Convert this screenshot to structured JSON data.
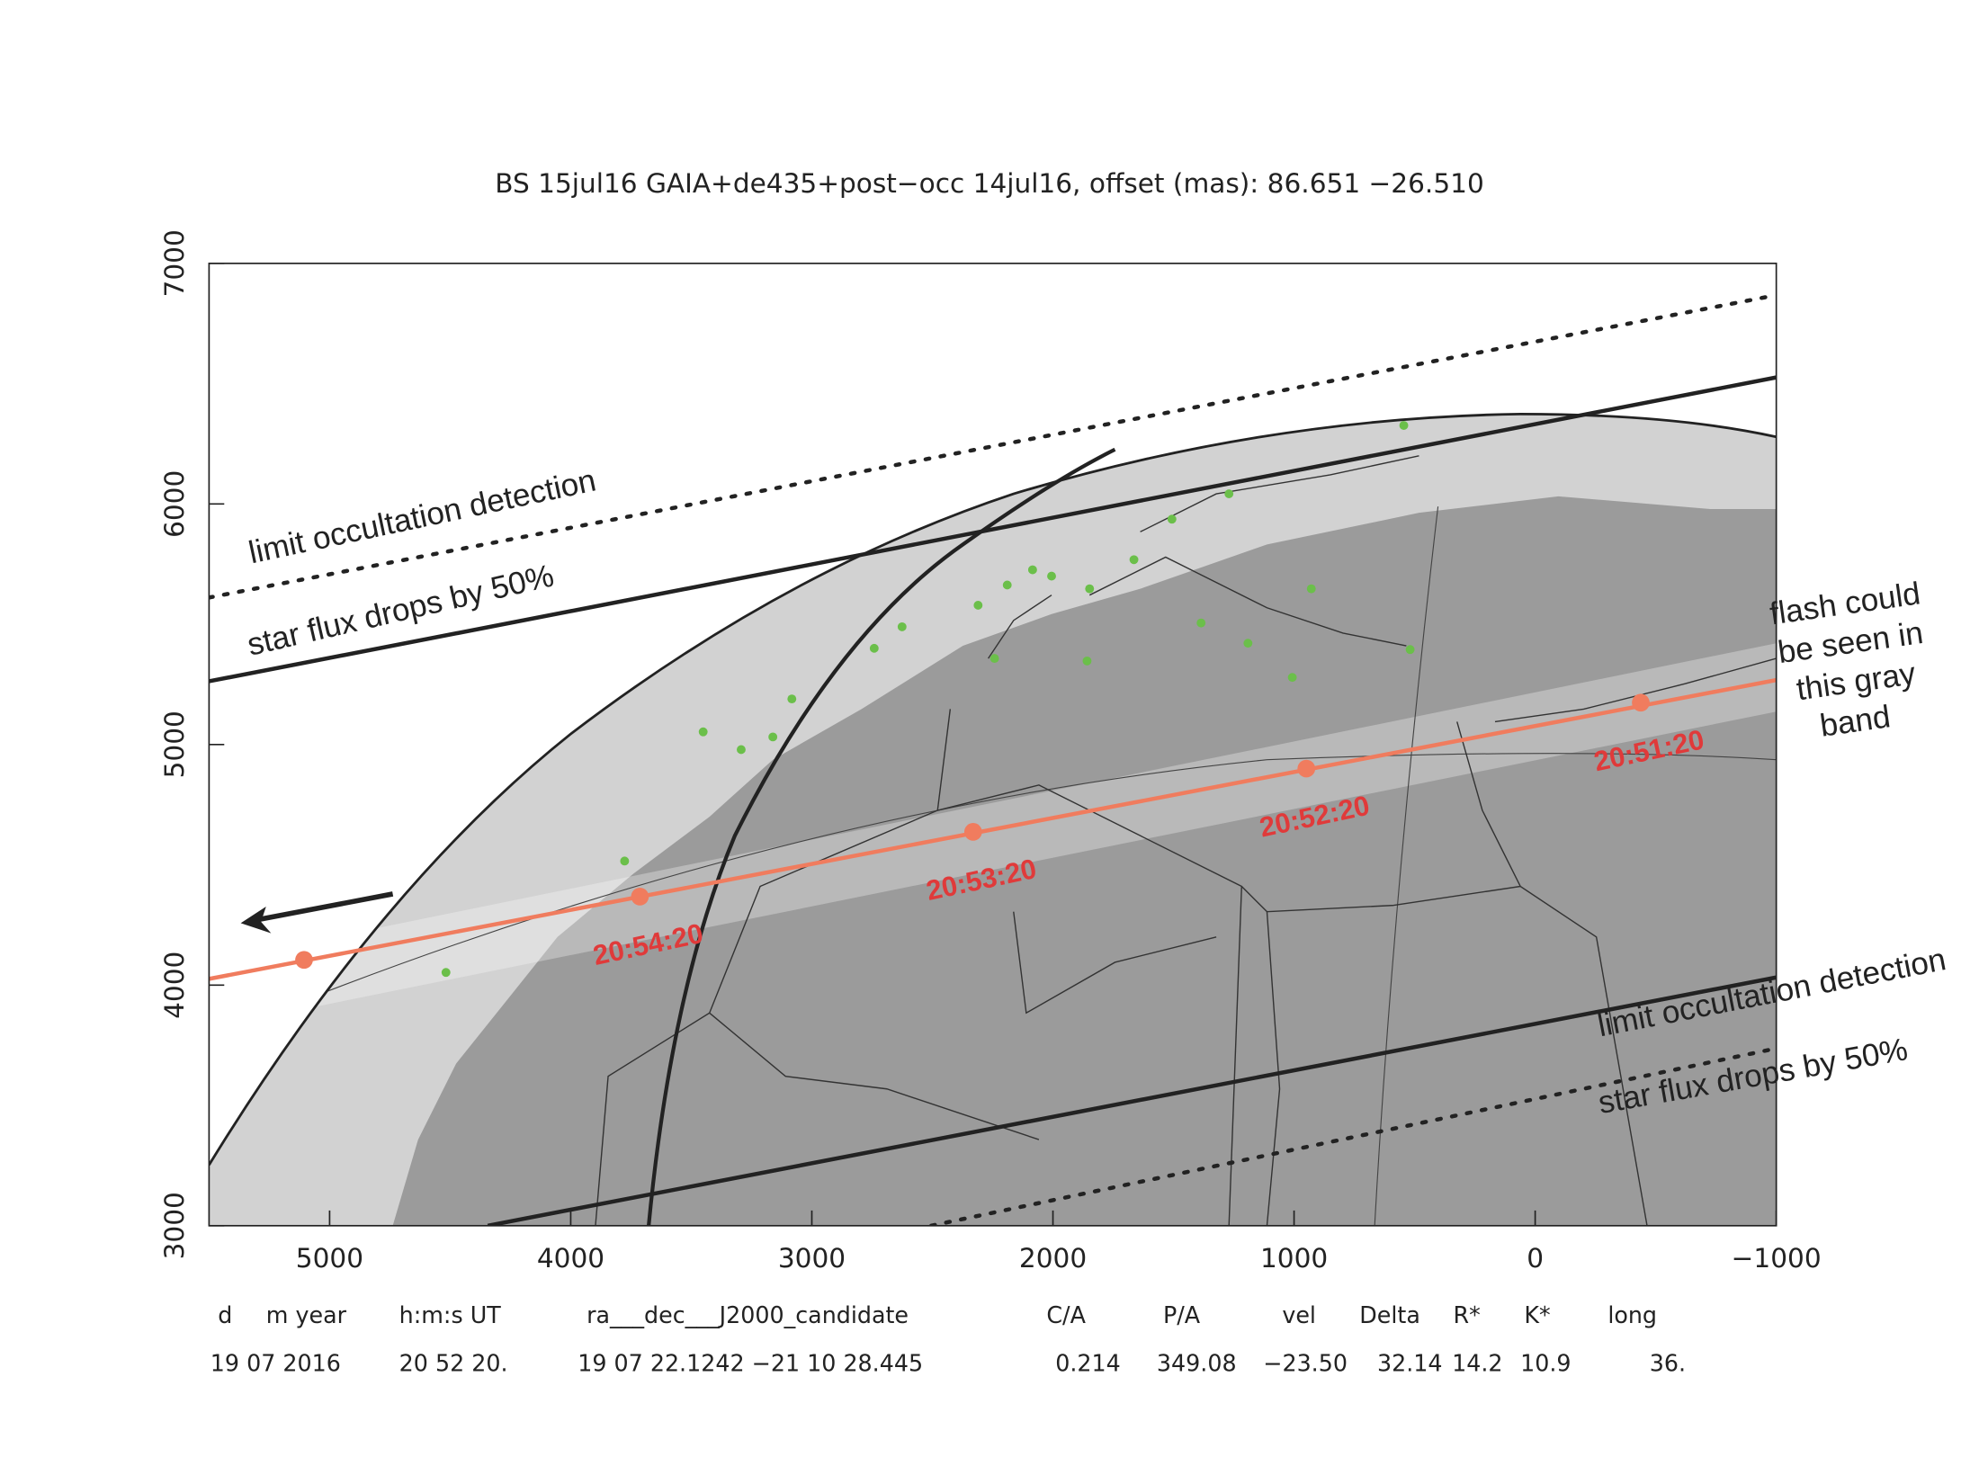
{
  "chart_data": {
    "type": "line",
    "title": "BS 15jul16 GAIA+de435+post−occ 14jul16, offset (mas): 86.651 −26.510",
    "xlim": [
      5500,
      -1000
    ],
    "ylim": [
      3000,
      7000
    ],
    "xticks": [
      5000,
      4000,
      3000,
      2000,
      1000,
      0,
      {
        "value": -1000,
        "label": "−1000"
      }
    ],
    "yticks": [
      3000,
      4000,
      5000,
      6000,
      7000
    ],
    "series": [
      {
        "color": "#f07c5e",
        "style": "solid",
        "x": [
          5500,
          -1000
        ],
        "values": [
          4026,
          5268
        ]
      },
      {
        "color": "#222222",
        "style": "solid",
        "x": [
          5500,
          -1000
        ],
        "values": [
          5263,
          6526
        ]
      },
      {
        "color": "#222222",
        "style": "dotted",
        "x": [
          5500,
          -1000
        ],
        "values": [
          5611,
          6868
        ]
      },
      {
        "color": "#222222",
        "style": "solid",
        "x": [
          4344,
          -1000
        ],
        "values": [
          3000,
          4032
        ]
      },
      {
        "color": "#222222",
        "style": "dotted",
        "x": [
          2505,
          -1000
        ],
        "values": [
          3000,
          3737
        ]
      }
    ],
    "markers": {
      "color": "#f07c5e",
      "x": [
        5106,
        3713,
        2331,
        949,
        -438
      ],
      "values": [
        4105,
        4368,
        4637,
        4900,
        5174
      ],
      "labels": [
        null,
        "20:54:20",
        "20:53:20",
        "20:52:20",
        "20:51:20"
      ]
    },
    "annotations": {
      "limit_top": "limit occultation detection",
      "flux_top": "star flux drops by 50%",
      "limit_bottom": "limit occultation detection",
      "flux_bottom": "star flux drops by 50%",
      "flash": [
        "flash could",
        "be seen in",
        "this gray",
        "band"
      ]
    },
    "table": {
      "header": [
        "d",
        "m year",
        "h:m:s UT",
        "ra___dec___J2000_candidate",
        "C/A",
        "P/A",
        "vel",
        "Delta",
        "R*",
        "K*",
        "long"
      ],
      "row": [
        "19 07 2016",
        "20 52 20.",
        "19 07 22.1242 −21 10 28.445",
        "0.214",
        "349.08",
        "−23.50",
        "32.14",
        "14.2",
        "10.9",
        "36."
      ]
    }
  }
}
